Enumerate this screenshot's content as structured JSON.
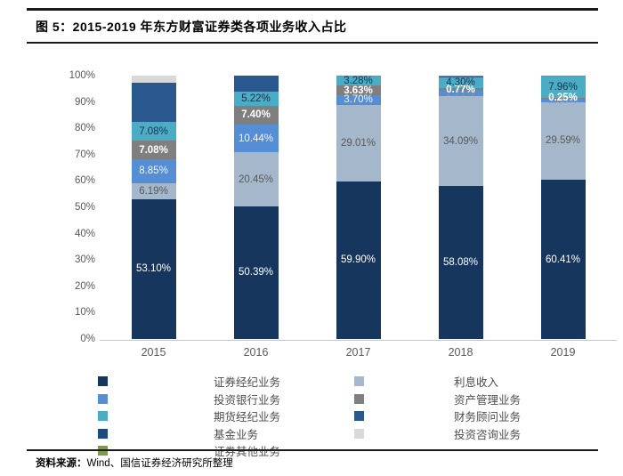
{
  "header": {
    "title": "图 5：2015-2019 年东方财富证券类各项业务收入占比"
  },
  "footer": {
    "source_label": "资料来源：",
    "source_text": "Wind、国信证券经济研究所整理"
  },
  "chart_data": {
    "type": "bar",
    "variant": "100pct-stacked-column",
    "title": "2015-2019 年东方财富证券类各项业务收入占比",
    "categories": [
      "2015",
      "2016",
      "2017",
      "2018",
      "2019"
    ],
    "y_axis": {
      "min": 0,
      "max": 100,
      "tick_step": 10,
      "tick_labels": [
        "0%",
        "10%",
        "20%",
        "30%",
        "40%",
        "50%",
        "60%",
        "70%",
        "80%",
        "90%",
        "100%"
      ]
    },
    "grid": false,
    "legend_position": "bottom",
    "series": [
      {
        "name": "证券经纪业务",
        "color": "#16365d",
        "values": [
          53.1,
          50.39,
          59.9,
          58.08,
          60.41
        ],
        "labels": [
          "53.10%",
          "50.39%",
          "59.90%",
          "58.08%",
          "60.41%"
        ],
        "label_color": "#ffffff"
      },
      {
        "name": "利息收入",
        "color": "#a5b8cb",
        "values": [
          6.19,
          20.45,
          29.01,
          34.09,
          29.59
        ],
        "labels": [
          "6.19%",
          "20.45%",
          "29.01%",
          "34.09%",
          "29.59%"
        ],
        "label_color": "#595959"
      },
      {
        "name": "投资银行业务",
        "color": "#558ed5",
        "values": [
          8.85,
          10.44,
          3.7,
          2.21,
          1.39
        ],
        "labels": [
          "8.85%",
          "10.44%",
          "3.70%",
          "2.21%",
          "1.39%"
        ],
        "label_color": "#f5f5f5",
        "label_colors": [
          "#f5f5f5",
          "#f5f5f5",
          "#f5f5f5",
          "#8b9099",
          "#9aa0a8"
        ]
      },
      {
        "name": "资产管理业务",
        "color": "#7f7f7f",
        "values": [
          7.08,
          7.4,
          3.63,
          0.77,
          0.25
        ],
        "labels": [
          "7.08%",
          "7.40%",
          "3.63%",
          "0.77%",
          "0.25%"
        ],
        "label_color": "#ffffff",
        "label_bold": true
      },
      {
        "name": "期货经纪业务",
        "color": "#4bacc6",
        "values": [
          7.08,
          5.22,
          3.28,
          4.3,
          7.96
        ],
        "labels": [
          "7.08%",
          "5.22%",
          "3.28%",
          "4.30%",
          "7.96%"
        ],
        "label_color": "#1f3048"
      },
      {
        "name": "财务顾问业务",
        "color": "#29588e",
        "values": [
          15.0,
          6.1,
          0.1,
          0.15,
          0.1
        ],
        "labels": null,
        "estimated": true
      },
      {
        "name": "基金业务",
        "color": "#1f497d",
        "values": [
          0,
          0,
          0,
          0,
          0
        ],
        "labels": null,
        "estimated": true
      },
      {
        "name": "投资咨询业务",
        "color": "#d9d9d9",
        "values": [
          2.7,
          0,
          0.08,
          0.1,
          0.1
        ],
        "labels": null,
        "estimated": true
      },
      {
        "name": "证券其他业务",
        "color": "#7d9a44",
        "values": [
          0,
          0,
          0.3,
          0.3,
          0.2
        ],
        "labels": null,
        "estimated": true
      }
    ],
    "legend": {
      "left": [
        {
          "name": "证券经纪业务",
          "color": "#16365d"
        },
        {
          "name": "投资银行业务",
          "color": "#558ed5"
        },
        {
          "name": "期货经纪业务",
          "color": "#4bacc6"
        },
        {
          "name": "基金业务",
          "color": "#1f497d"
        },
        {
          "name": "证券其他业务",
          "color": "#7d9a44"
        }
      ],
      "right": [
        {
          "name": "利息收入",
          "color": "#a5b8cb"
        },
        {
          "name": "资产管理业务",
          "color": "#7f7f7f"
        },
        {
          "name": "财务顾问业务",
          "color": "#29588e"
        },
        {
          "name": "投资咨询业务",
          "color": "#d9d9d9"
        }
      ]
    }
  }
}
